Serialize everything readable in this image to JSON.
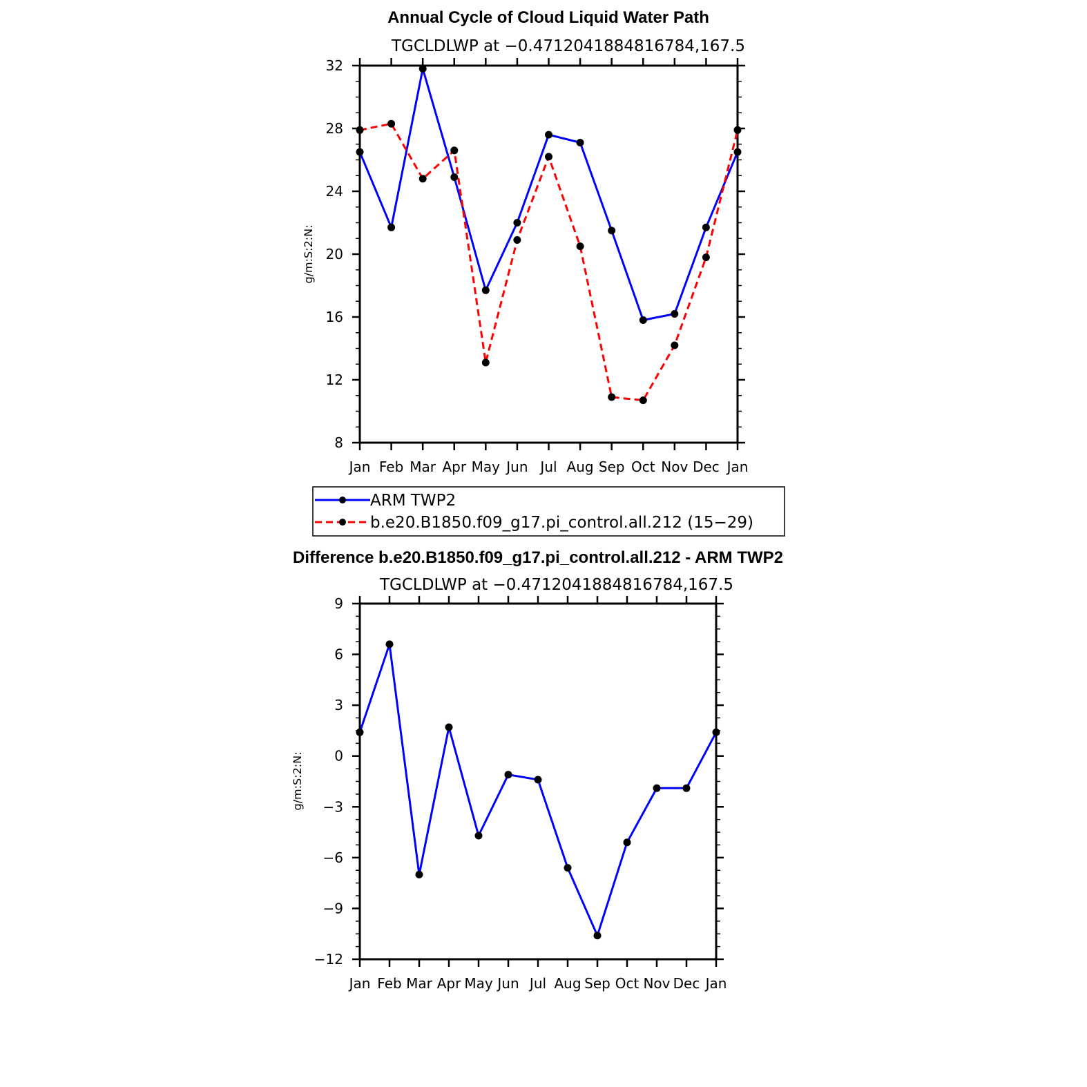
{
  "chart_data": [
    {
      "type": "line",
      "title": "Annual Cycle of Cloud Liquid Water Path",
      "subtitle": "TGCLDLWP at −0.4712041884816784,167.5",
      "ylabel": "g/m:S:2:N:",
      "xlabel": "",
      "categories": [
        "Jan",
        "Feb",
        "Mar",
        "Apr",
        "May",
        "Jun",
        "Jul",
        "Aug",
        "Sep",
        "Oct",
        "Nov",
        "Dec",
        "Jan"
      ],
      "ylim": [
        8,
        32
      ],
      "yticks": [
        "8",
        "12",
        "16",
        "20",
        "24",
        "28",
        "32"
      ],
      "grid": false,
      "legend_position": "below",
      "series": [
        {
          "name": "ARM TWP2",
          "color": "#0000ff",
          "dash": "solid",
          "values": [
            26.5,
            21.7,
            31.8,
            24.9,
            17.7,
            22.0,
            27.6,
            27.1,
            21.5,
            15.8,
            16.2,
            21.7,
            26.5
          ]
        },
        {
          "name": "b.e20.B1850.f09_g17.pi_control.all.212 (15−29)",
          "color": "#ff0000",
          "dash": "dashed",
          "values": [
            27.9,
            28.3,
            24.8,
            26.6,
            13.1,
            20.9,
            26.2,
            20.5,
            10.9,
            10.7,
            14.2,
            19.8,
            27.9
          ]
        }
      ]
    },
    {
      "type": "line",
      "title": "Difference b.e20.B1850.f09_g17.pi_control.all.212 - ARM TWP2",
      "subtitle": "TGCLDLWP at −0.4712041884816784,167.5",
      "ylabel": "g/m:S:2:N:",
      "xlabel": "",
      "categories": [
        "Jan",
        "Feb",
        "Mar",
        "Apr",
        "May",
        "Jun",
        "Jul",
        "Aug",
        "Sep",
        "Oct",
        "Nov",
        "Dec",
        "Jan"
      ],
      "ylim": [
        -12,
        9
      ],
      "yticks": [
        "−12",
        "−9",
        "−6",
        "−3",
        "0",
        "3",
        "6",
        "9"
      ],
      "grid": false,
      "series": [
        {
          "color": "#0000ff",
          "dash": "solid",
          "values": [
            1.4,
            6.6,
            -7.0,
            1.7,
            -4.7,
            -1.1,
            -1.4,
            -6.6,
            -10.6,
            -5.1,
            -1.9,
            -1.9,
            1.4
          ]
        }
      ]
    }
  ]
}
